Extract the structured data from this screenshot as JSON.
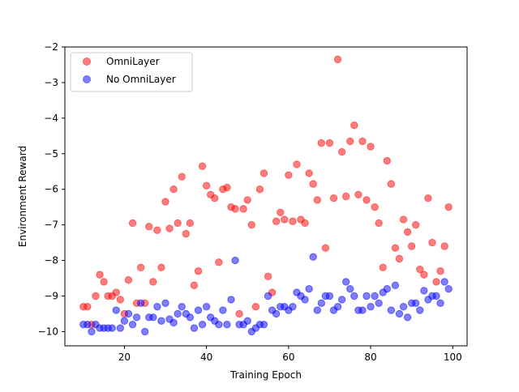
{
  "chart_data": {
    "type": "scatter",
    "xlabel": "Training Epoch",
    "ylabel": "Environment Reward",
    "xlim": [
      5.5,
      103.5
    ],
    "ylim": [
      -10.4,
      -2
    ],
    "xticks": [
      20,
      40,
      60,
      80,
      100
    ],
    "yticks": [
      -10,
      -9,
      -8,
      -7,
      -6,
      -5,
      -4,
      -3,
      -2
    ],
    "xtick_labels": [
      "20",
      "40",
      "60",
      "80",
      "100"
    ],
    "ytick_labels": [
      "−10",
      "−9",
      "−8",
      "−7",
      "−6",
      "−5",
      "−4",
      "−3",
      "−2"
    ],
    "grid": false,
    "legend_position": "top-left",
    "series": [
      {
        "name": "OmniLayer",
        "color": "#ff0000",
        "points": [
          [
            10,
            -9.3
          ],
          [
            11,
            -9.3
          ],
          [
            12,
            -9.8
          ],
          [
            13,
            -9.0
          ],
          [
            14,
            -8.4
          ],
          [
            15,
            -8.6
          ],
          [
            16,
            -9.0
          ],
          [
            17,
            -9.0
          ],
          [
            18,
            -8.9
          ],
          [
            19,
            -9.1
          ],
          [
            20,
            -9.5
          ],
          [
            21,
            -8.55
          ],
          [
            22,
            -6.95
          ],
          [
            23,
            -9.2
          ],
          [
            24,
            -8.2
          ],
          [
            25,
            -9.2
          ],
          [
            26,
            -7.05
          ],
          [
            27,
            -8.6
          ],
          [
            28,
            -7.15
          ],
          [
            29,
            -8.2
          ],
          [
            30,
            -6.35
          ],
          [
            31,
            -7.1
          ],
          [
            32,
            -6.0
          ],
          [
            33,
            -6.95
          ],
          [
            34,
            -5.65
          ],
          [
            35,
            -7.25
          ],
          [
            36,
            -6.95
          ],
          [
            37,
            -8.7
          ],
          [
            38,
            -8.3
          ],
          [
            39,
            -5.35
          ],
          [
            40,
            -5.9
          ],
          [
            41,
            -6.15
          ],
          [
            42,
            -6.25
          ],
          [
            43,
            -8.05
          ],
          [
            44,
            -6.0
          ],
          [
            45,
            -5.95
          ],
          [
            46,
            -6.5
          ],
          [
            47,
            -6.55
          ],
          [
            48,
            -9.5
          ],
          [
            49,
            -6.55
          ],
          [
            50,
            -6.3
          ],
          [
            51,
            -7.0
          ],
          [
            52,
            -9.3
          ],
          [
            53,
            -6.0
          ],
          [
            54,
            -5.55
          ],
          [
            55,
            -8.45
          ],
          [
            56,
            -8.9
          ],
          [
            57,
            -6.9
          ],
          [
            58,
            -6.65
          ],
          [
            59,
            -6.85
          ],
          [
            60,
            -5.6
          ],
          [
            61,
            -6.9
          ],
          [
            62,
            -5.3
          ],
          [
            63,
            -6.85
          ],
          [
            64,
            -6.95
          ],
          [
            65,
            -5.55
          ],
          [
            66,
            -5.85
          ],
          [
            67,
            -6.3
          ],
          [
            68,
            -4.7
          ],
          [
            69,
            -7.65
          ],
          [
            70,
            -4.7
          ],
          [
            71,
            -6.25
          ],
          [
            72,
            -2.35
          ],
          [
            73,
            -4.95
          ],
          [
            74,
            -6.2
          ],
          [
            75,
            -4.65
          ],
          [
            76,
            -4.2
          ],
          [
            77,
            -6.15
          ],
          [
            78,
            -4.65
          ],
          [
            79,
            -6.3
          ],
          [
            80,
            -4.8
          ],
          [
            81,
            -6.5
          ],
          [
            82,
            -6.95
          ],
          [
            83,
            -8.2
          ],
          [
            84,
            -5.2
          ],
          [
            85,
            -5.85
          ],
          [
            86,
            -7.65
          ],
          [
            87,
            -7.95
          ],
          [
            88,
            -6.85
          ],
          [
            89,
            -7.2
          ],
          [
            90,
            -7.6
          ],
          [
            91,
            -7.0
          ],
          [
            92,
            -8.25
          ],
          [
            93,
            -8.4
          ],
          [
            94,
            -6.25
          ],
          [
            95,
            -7.5
          ],
          [
            96,
            -8.6
          ],
          [
            97,
            -8.3
          ],
          [
            98,
            -7.6
          ],
          [
            99,
            -6.5
          ]
        ]
      },
      {
        "name": "No OmniLayer",
        "color": "#0000ff",
        "points": [
          [
            10,
            -9.8
          ],
          [
            11,
            -9.8
          ],
          [
            12,
            -10.0
          ],
          [
            13,
            -9.8
          ],
          [
            14,
            -9.9
          ],
          [
            15,
            -9.9
          ],
          [
            16,
            -9.9
          ],
          [
            17,
            -9.9
          ],
          [
            18,
            -9.4
          ],
          [
            19,
            -9.9
          ],
          [
            20,
            -9.7
          ],
          [
            21,
            -9.5
          ],
          [
            22,
            -9.8
          ],
          [
            23,
            -9.6
          ],
          [
            24,
            -9.2
          ],
          [
            25,
            -10.0
          ],
          [
            26,
            -9.6
          ],
          [
            27,
            -9.6
          ],
          [
            28,
            -9.3
          ],
          [
            29,
            -9.7
          ],
          [
            30,
            -9.2
          ],
          [
            31,
            -9.65
          ],
          [
            32,
            -9.75
          ],
          [
            33,
            -9.5
          ],
          [
            34,
            -9.3
          ],
          [
            35,
            -9.5
          ],
          [
            36,
            -9.6
          ],
          [
            37,
            -9.9
          ],
          [
            38,
            -9.4
          ],
          [
            39,
            -9.8
          ],
          [
            40,
            -9.3
          ],
          [
            41,
            -9.6
          ],
          [
            42,
            -9.7
          ],
          [
            43,
            -9.8
          ],
          [
            44,
            -9.4
          ],
          [
            45,
            -9.8
          ],
          [
            46,
            -9.1
          ],
          [
            47,
            -8.0
          ],
          [
            48,
            -9.8
          ],
          [
            49,
            -9.8
          ],
          [
            50,
            -9.7
          ],
          [
            51,
            -10.0
          ],
          [
            52,
            -9.9
          ],
          [
            53,
            -9.8
          ],
          [
            54,
            -9.8
          ],
          [
            55,
            -9.0
          ],
          [
            56,
            -9.4
          ],
          [
            57,
            -9.5
          ],
          [
            58,
            -9.3
          ],
          [
            59,
            -9.3
          ],
          [
            60,
            -9.4
          ],
          [
            61,
            -9.3
          ],
          [
            62,
            -8.9
          ],
          [
            63,
            -9.0
          ],
          [
            64,
            -9.1
          ],
          [
            65,
            -8.8
          ],
          [
            66,
            -7.9
          ],
          [
            67,
            -9.4
          ],
          [
            68,
            -9.2
          ],
          [
            69,
            -9.0
          ],
          [
            70,
            -9.0
          ],
          [
            71,
            -9.4
          ],
          [
            72,
            -9.3
          ],
          [
            73,
            -9.1
          ],
          [
            74,
            -8.6
          ],
          [
            75,
            -8.8
          ],
          [
            76,
            -9.0
          ],
          [
            77,
            -9.4
          ],
          [
            78,
            -9.4
          ],
          [
            79,
            -9.0
          ],
          [
            80,
            -9.3
          ],
          [
            81,
            -9.0
          ],
          [
            82,
            -9.2
          ],
          [
            83,
            -8.9
          ],
          [
            84,
            -8.8
          ],
          [
            85,
            -9.4
          ],
          [
            86,
            -8.7
          ],
          [
            87,
            -9.5
          ],
          [
            88,
            -9.3
          ],
          [
            89,
            -9.6
          ],
          [
            90,
            -9.2
          ],
          [
            91,
            -9.2
          ],
          [
            92,
            -9.4
          ],
          [
            93,
            -8.85
          ],
          [
            94,
            -9.1
          ],
          [
            95,
            -9.0
          ],
          [
            96,
            -9.0
          ],
          [
            97,
            -9.2
          ],
          [
            98,
            -8.6
          ],
          [
            99,
            -8.8
          ]
        ]
      }
    ]
  }
}
